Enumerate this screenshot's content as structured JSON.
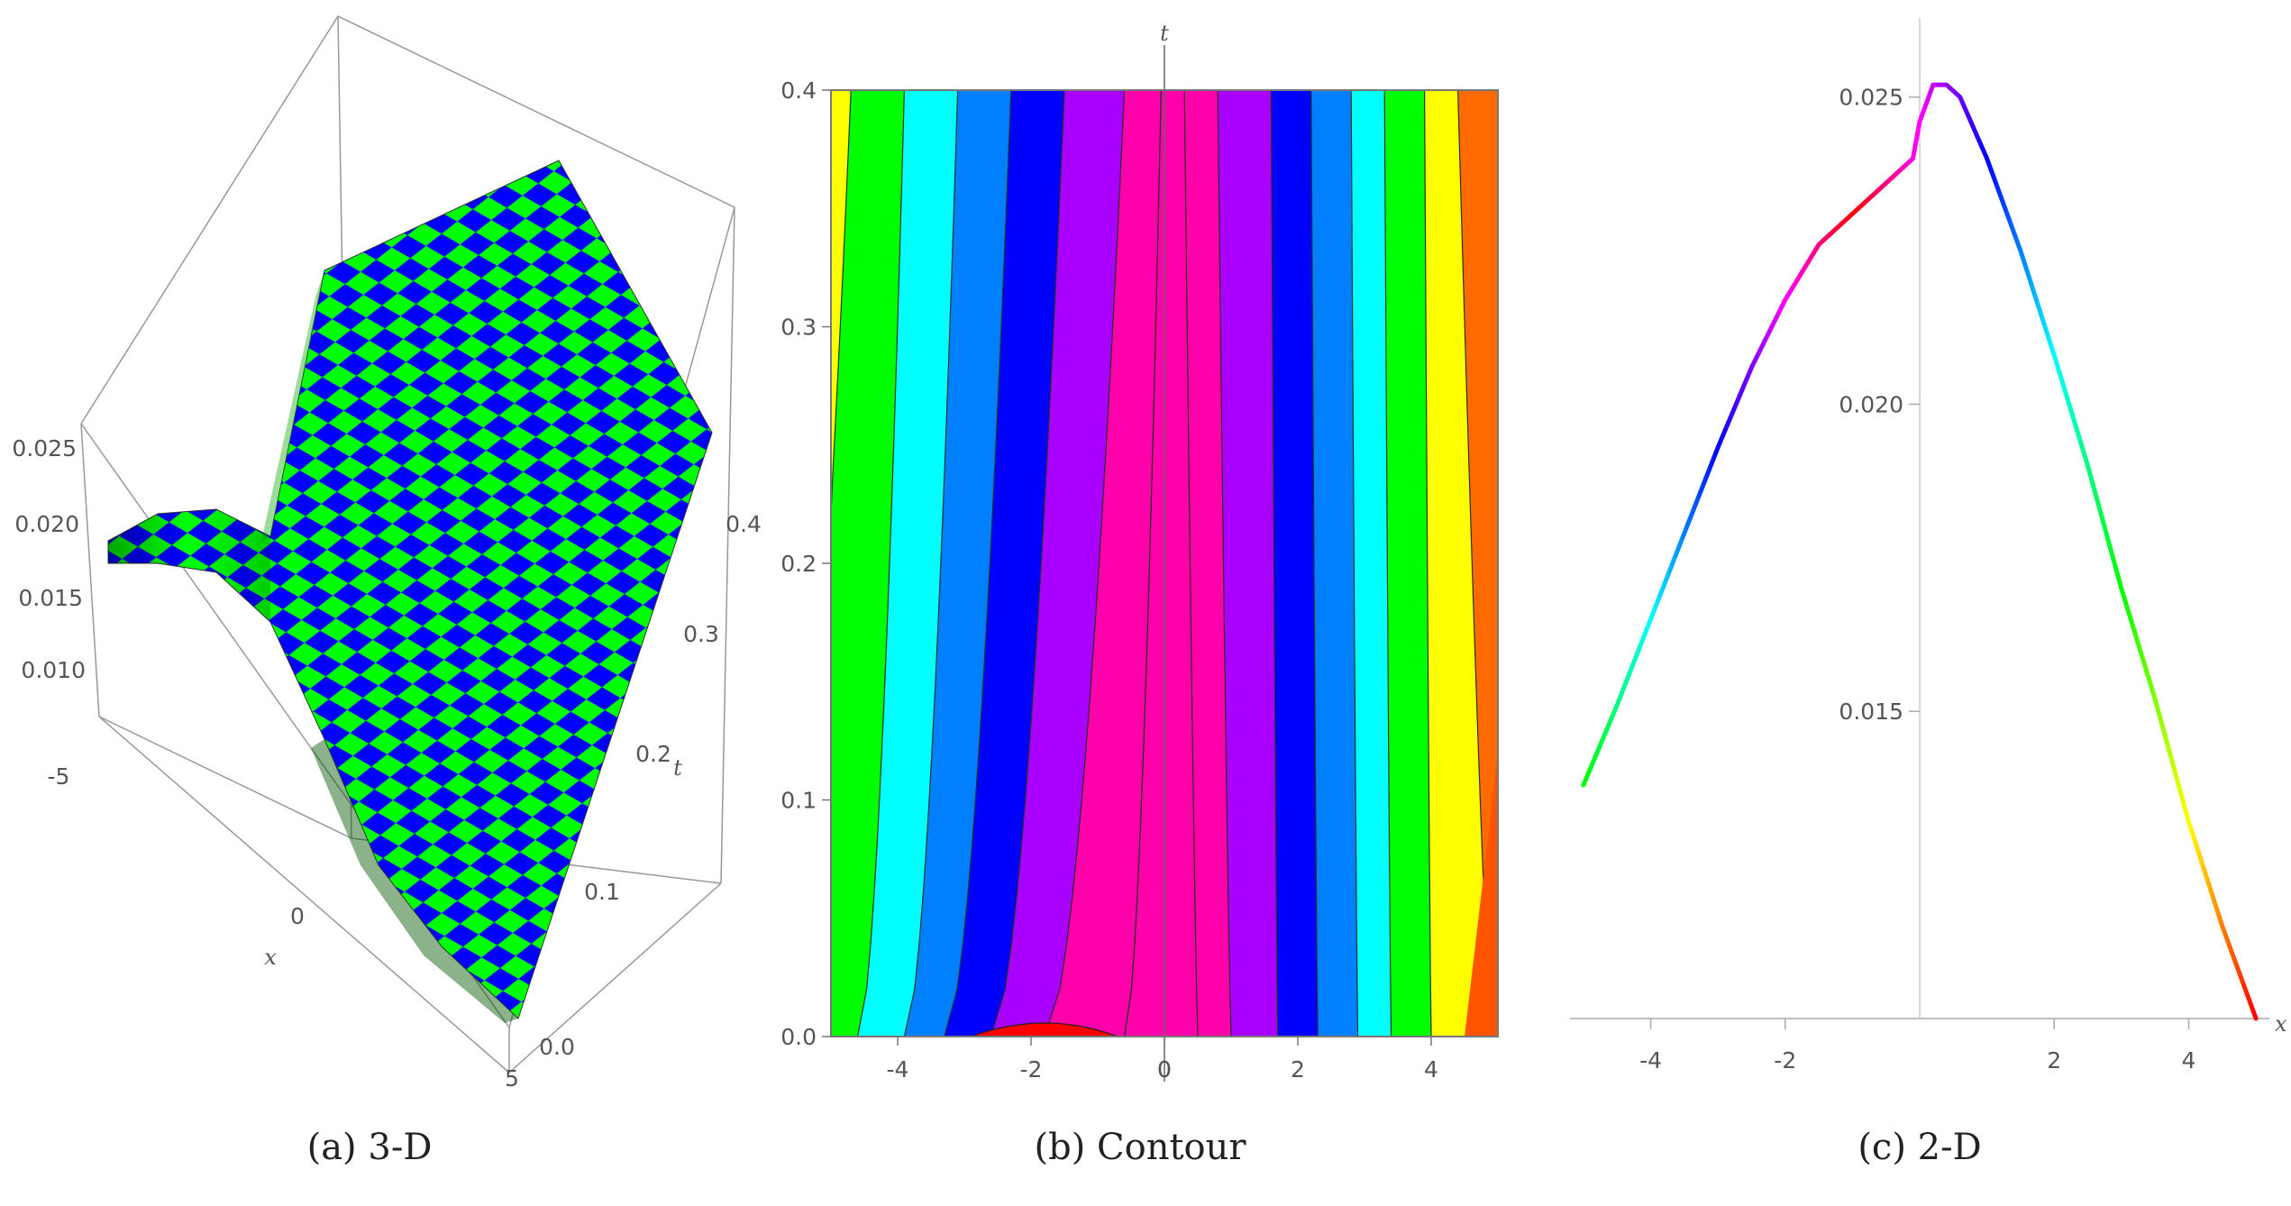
{
  "captions": {
    "a": "(a) 3-D",
    "b": "(b) Contour",
    "c": "(c) 2-D"
  },
  "chart_data": [
    {
      "id": "a",
      "type": "surface3d",
      "caption": "(a) 3-D",
      "xlabel": "x",
      "ylabel": "t",
      "x_ticks": [
        "-5",
        "0",
        "5"
      ],
      "t_ticks": [
        "0.0",
        "0.1",
        "0.2",
        "0.3",
        "0.4"
      ],
      "z_ticks": [
        "0.010",
        "0.015",
        "0.020",
        "0.025"
      ],
      "xlim": [
        -5,
        5
      ],
      "tlim": [
        0,
        0.4
      ],
      "zlim": [
        0.008,
        0.026
      ],
      "checker_colors": [
        "#0000ff",
        "#00ff00"
      ]
    },
    {
      "id": "b",
      "type": "contour",
      "caption": "(b) Contour",
      "xlabel": "",
      "ylabel": "t",
      "xlim": [
        -5,
        5
      ],
      "ylim": [
        0,
        0.4
      ],
      "x_ticks": [
        "-4",
        "-2",
        "0",
        "2",
        "4"
      ],
      "y_ticks": [
        "0.0",
        "0.1",
        "0.2",
        "0.3",
        "0.4"
      ],
      "x_tick_values": [
        -4,
        -2,
        0,
        2,
        4
      ],
      "y_tick_values": [
        0,
        0.1,
        0.2,
        0.3,
        0.4
      ],
      "band_colors": [
        "#ffff00",
        "#00ff00",
        "#00ffcc",
        "#00ffff",
        "#0080ff",
        "#0000ff",
        "#aa00ff",
        "#ff00aa",
        "#ff0000",
        "#ff6a00"
      ]
    },
    {
      "id": "c",
      "type": "line",
      "caption": "(c) 2-D",
      "xlabel": "x",
      "ylabel": "",
      "xlim": [
        -5.2,
        5.2
      ],
      "ylim": [
        0.01,
        0.0257
      ],
      "x_ticks": [
        "-4",
        "-2",
        "2",
        "4"
      ],
      "x_tick_values": [
        -4,
        -2,
        2,
        4
      ],
      "y_ticks": [
        "0.015",
        "0.020",
        "0.025"
      ],
      "y_tick_values": [
        0.015,
        0.02,
        0.025
      ],
      "x": [
        -5.0,
        -4.5,
        -4.0,
        -3.5,
        -3.0,
        -2.5,
        -2.0,
        -1.5,
        -1.0,
        -0.5,
        -0.1,
        0.0,
        0.2,
        0.4,
        0.6,
        1.0,
        1.5,
        2.0,
        2.5,
        3.0,
        3.5,
        4.0,
        4.5,
        5.0
      ],
      "y": [
        0.0138,
        0.0151,
        0.0165,
        0.0179,
        0.0193,
        0.0206,
        0.0217,
        0.0226,
        0.0231,
        0.0236,
        0.024,
        0.0246,
        0.0252,
        0.0252,
        0.025,
        0.024,
        0.0225,
        0.0208,
        0.019,
        0.017,
        0.0152,
        0.0132,
        0.0115,
        0.01
      ],
      "gradient_colors": [
        "#00ff00",
        "#00ffff",
        "#0000ff",
        "#ff00ff",
        "#ff0000",
        "#ff00ff",
        "#0000ff",
        "#00ffff",
        "#00ff00",
        "#ffff00",
        "#ff0000"
      ]
    }
  ]
}
